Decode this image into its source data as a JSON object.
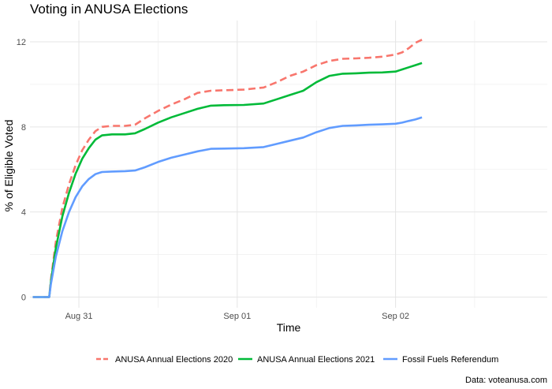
{
  "chart_data": {
    "type": "line",
    "title": "Voting in ANUSA Elections",
    "xlabel": "Time",
    "ylabel": "% of Eligible Voted",
    "caption": "Data: voteanusa.com",
    "x_axis_type": "datetime",
    "x_range": [
      "2021-08-30T16:35",
      "2021-09-02T23:00"
    ],
    "x_ticks": [
      {
        "label": "Aug 31",
        "value": "2021-08-31T00:00"
      },
      {
        "label": "Sep 01",
        "value": "2021-09-01T00:00"
      },
      {
        "label": "Sep 02",
        "value": "2021-09-02T00:00"
      }
    ],
    "ylim": [
      -0.5,
      13
    ],
    "y_ticks": [
      0,
      4,
      8,
      12
    ],
    "grid": true,
    "legend_position": "bottom",
    "series": [
      {
        "name": "ANUSA Annual Elections 2020",
        "color": "#F8766D",
        "dashed": true,
        "points": [
          [
            "2021-08-30T17:00",
            0
          ],
          [
            "2021-08-30T19:30",
            0
          ],
          [
            "2021-08-30T19:45",
            0.8
          ],
          [
            "2021-08-30T20:30",
            2.6
          ],
          [
            "2021-08-30T21:30",
            4.2
          ],
          [
            "2021-08-30T22:30",
            5.3
          ],
          [
            "2021-08-30T23:30",
            6.2
          ],
          [
            "2021-08-31T00:30",
            6.9
          ],
          [
            "2021-08-31T01:30",
            7.4
          ],
          [
            "2021-08-31T02:30",
            7.8
          ],
          [
            "2021-08-31T03:30",
            8.0
          ],
          [
            "2021-08-31T05:00",
            8.05
          ],
          [
            "2021-08-31T07:00",
            8.05
          ],
          [
            "2021-08-31T08:30",
            8.1
          ],
          [
            "2021-08-31T10:00",
            8.4
          ],
          [
            "2021-08-31T12:00",
            8.75
          ],
          [
            "2021-08-31T14:00",
            9.05
          ],
          [
            "2021-08-31T16:00",
            9.3
          ],
          [
            "2021-08-31T18:00",
            9.6
          ],
          [
            "2021-08-31T20:00",
            9.7
          ],
          [
            "2021-08-31T22:00",
            9.72
          ],
          [
            "2021-09-01T01:00",
            9.75
          ],
          [
            "2021-09-01T04:00",
            9.85
          ],
          [
            "2021-09-01T06:00",
            10.1
          ],
          [
            "2021-09-01T08:00",
            10.4
          ],
          [
            "2021-09-01T10:00",
            10.6
          ],
          [
            "2021-09-01T12:00",
            10.9
          ],
          [
            "2021-09-01T14:00",
            11.1
          ],
          [
            "2021-09-01T16:00",
            11.2
          ],
          [
            "2021-09-01T18:00",
            11.22
          ],
          [
            "2021-09-01T20:00",
            11.25
          ],
          [
            "2021-09-01T22:00",
            11.3
          ],
          [
            "2021-09-02T00:00",
            11.4
          ],
          [
            "2021-09-02T01:00",
            11.5
          ],
          [
            "2021-09-02T02:00",
            11.7
          ],
          [
            "2021-09-02T03:00",
            11.95
          ],
          [
            "2021-09-02T04:00",
            12.1
          ]
        ]
      },
      {
        "name": "ANUSA Annual Elections 2021",
        "color": "#00BA38",
        "dashed": false,
        "points": [
          [
            "2021-08-30T17:00",
            0
          ],
          [
            "2021-08-30T19:30",
            0
          ],
          [
            "2021-08-30T19:45",
            0.7
          ],
          [
            "2021-08-30T20:30",
            2.3
          ],
          [
            "2021-08-30T21:30",
            3.8
          ],
          [
            "2021-08-30T22:30",
            4.9
          ],
          [
            "2021-08-30T23:30",
            5.8
          ],
          [
            "2021-08-31T00:30",
            6.5
          ],
          [
            "2021-08-31T01:30",
            7.0
          ],
          [
            "2021-08-31T02:30",
            7.4
          ],
          [
            "2021-08-31T03:30",
            7.6
          ],
          [
            "2021-08-31T05:00",
            7.65
          ],
          [
            "2021-08-31T07:00",
            7.65
          ],
          [
            "2021-08-31T08:30",
            7.7
          ],
          [
            "2021-08-31T10:00",
            7.9
          ],
          [
            "2021-08-31T12:00",
            8.2
          ],
          [
            "2021-08-31T14:00",
            8.45
          ],
          [
            "2021-08-31T16:00",
            8.65
          ],
          [
            "2021-08-31T18:00",
            8.85
          ],
          [
            "2021-08-31T20:00",
            9.0
          ],
          [
            "2021-08-31T22:00",
            9.02
          ],
          [
            "2021-09-01T01:00",
            9.03
          ],
          [
            "2021-09-01T04:00",
            9.1
          ],
          [
            "2021-09-01T06:00",
            9.3
          ],
          [
            "2021-09-01T08:00",
            9.5
          ],
          [
            "2021-09-01T10:00",
            9.7
          ],
          [
            "2021-09-01T12:00",
            10.1
          ],
          [
            "2021-09-01T14:00",
            10.4
          ],
          [
            "2021-09-01T16:00",
            10.5
          ],
          [
            "2021-09-01T18:00",
            10.52
          ],
          [
            "2021-09-01T20:00",
            10.55
          ],
          [
            "2021-09-01T22:00",
            10.56
          ],
          [
            "2021-09-02T00:00",
            10.6
          ],
          [
            "2021-09-02T01:00",
            10.7
          ],
          [
            "2021-09-02T02:00",
            10.8
          ],
          [
            "2021-09-02T03:00",
            10.9
          ],
          [
            "2021-09-02T04:00",
            11.0
          ]
        ]
      },
      {
        "name": "Fossil Fuels Referendum",
        "color": "#619CFF",
        "dashed": false,
        "points": [
          [
            "2021-08-30T17:00",
            0
          ],
          [
            "2021-08-30T19:30",
            0
          ],
          [
            "2021-08-30T19:45",
            0.6
          ],
          [
            "2021-08-30T20:30",
            1.9
          ],
          [
            "2021-08-30T21:30",
            3.1
          ],
          [
            "2021-08-30T22:30",
            4.0
          ],
          [
            "2021-08-30T23:30",
            4.7
          ],
          [
            "2021-08-31T00:30",
            5.2
          ],
          [
            "2021-08-31T01:30",
            5.55
          ],
          [
            "2021-08-31T02:30",
            5.78
          ],
          [
            "2021-08-31T03:30",
            5.88
          ],
          [
            "2021-08-31T05:00",
            5.9
          ],
          [
            "2021-08-31T07:00",
            5.92
          ],
          [
            "2021-08-31T08:30",
            5.95
          ],
          [
            "2021-08-31T10:00",
            6.1
          ],
          [
            "2021-08-31T12:00",
            6.35
          ],
          [
            "2021-08-31T14:00",
            6.55
          ],
          [
            "2021-08-31T16:00",
            6.7
          ],
          [
            "2021-08-31T18:00",
            6.85
          ],
          [
            "2021-08-31T20:00",
            6.97
          ],
          [
            "2021-08-31T22:00",
            6.98
          ],
          [
            "2021-09-01T01:00",
            7.0
          ],
          [
            "2021-09-01T04:00",
            7.05
          ],
          [
            "2021-09-01T06:00",
            7.2
          ],
          [
            "2021-09-01T08:00",
            7.35
          ],
          [
            "2021-09-01T10:00",
            7.5
          ],
          [
            "2021-09-01T12:00",
            7.75
          ],
          [
            "2021-09-01T14:00",
            7.95
          ],
          [
            "2021-09-01T16:00",
            8.05
          ],
          [
            "2021-09-01T18:00",
            8.07
          ],
          [
            "2021-09-01T20:00",
            8.1
          ],
          [
            "2021-09-01T22:00",
            8.12
          ],
          [
            "2021-09-02T00:00",
            8.15
          ],
          [
            "2021-09-02T01:00",
            8.2
          ],
          [
            "2021-09-02T02:00",
            8.28
          ],
          [
            "2021-09-02T03:00",
            8.35
          ],
          [
            "2021-09-02T04:00",
            8.45
          ]
        ]
      }
    ]
  }
}
